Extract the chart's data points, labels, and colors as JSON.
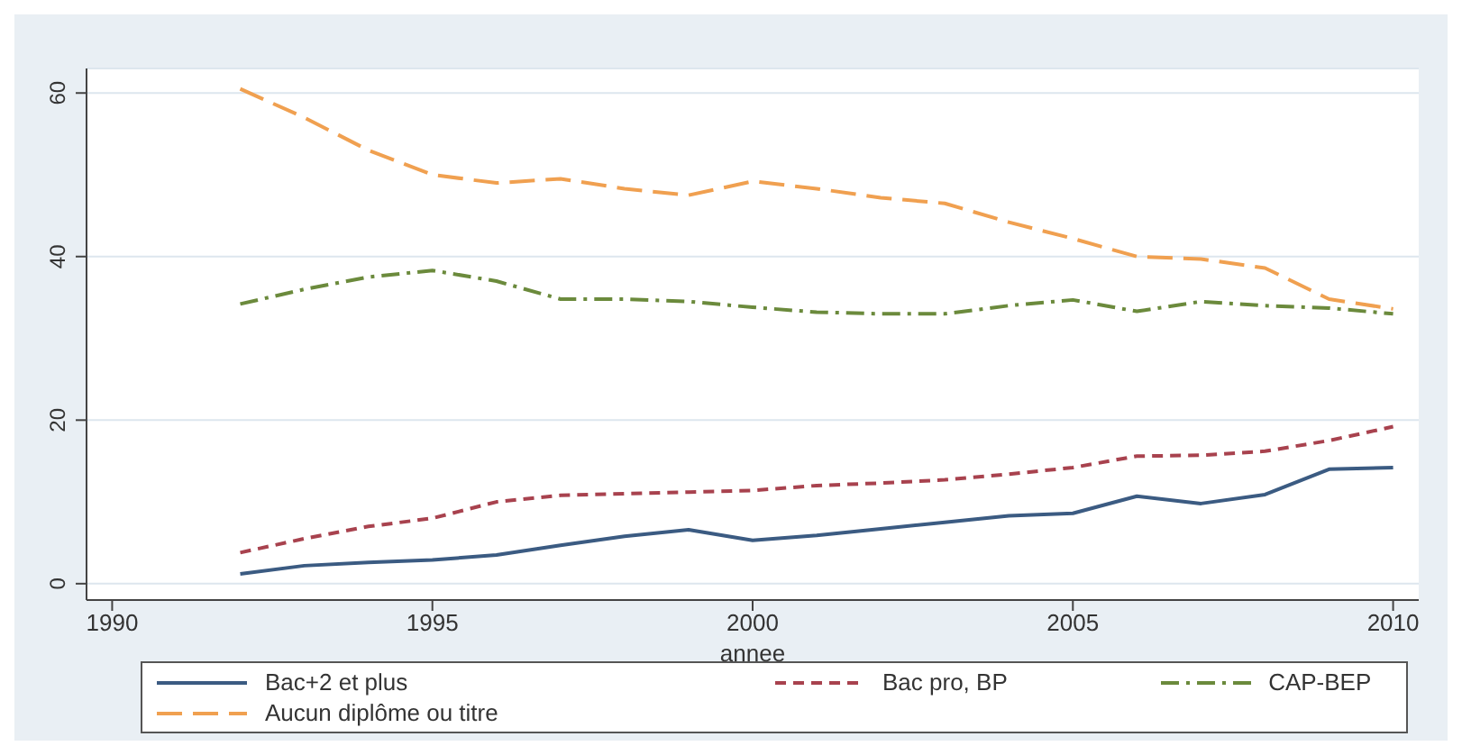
{
  "chart_data": {
    "type": "line",
    "xlabel": "annee",
    "x": [
      1992,
      1993,
      1994,
      1995,
      1996,
      1997,
      1998,
      1999,
      2000,
      2001,
      2002,
      2003,
      2004,
      2005,
      2006,
      2007,
      2008,
      2009,
      2010
    ],
    "series": [
      {
        "name": "Bac+2 et plus",
        "color": "#3b5b82",
        "line_style": "solid",
        "values": [
          1.2,
          2.2,
          2.6,
          2.9,
          3.5,
          4.7,
          5.8,
          6.6,
          5.3,
          5.9,
          6.7,
          7.5,
          8.3,
          8.6,
          10.7,
          9.8,
          10.9,
          14,
          14.2
        ]
      },
      {
        "name": "Bac pro, BP",
        "color": "#a8424e",
        "line_style": "dashed",
        "values": [
          3.8,
          5.5,
          7,
          8,
          10,
          10.8,
          11,
          11.2,
          11.4,
          12,
          12.3,
          12.7,
          13.4,
          14.2,
          15.6,
          15.7,
          16.2,
          17.5,
          19.2
        ]
      },
      {
        "name": "CAP-BEP",
        "color": "#6b8a3c",
        "line_style": "dashed",
        "values": [
          34.2,
          36,
          37.5,
          38.3,
          37,
          34.8,
          34.8,
          34.5,
          33.8,
          33.2,
          33,
          33,
          34,
          34.7,
          33.3,
          34.5,
          34,
          33.7,
          33
        ]
      },
      {
        "name": "Aucun diplôme ou titre",
        "color": "#f0a050",
        "line_style": "dashed",
        "values": [
          60.5,
          57,
          53,
          50,
          49,
          49.5,
          48.3,
          47.5,
          49.2,
          48.3,
          47.2,
          46.5,
          44.2,
          42.2,
          40,
          39.7,
          38.6,
          34.8,
          33.6
        ]
      }
    ],
    "xlim": [
      1989.6,
      2010.4
    ],
    "xticks": [
      1990,
      1995,
      2000,
      2005,
      2010
    ],
    "ylim": [
      -2,
      63
    ],
    "yticks": [
      0,
      20,
      40,
      60
    ],
    "grid": "y",
    "legend": "bottom",
    "marker": "none"
  }
}
